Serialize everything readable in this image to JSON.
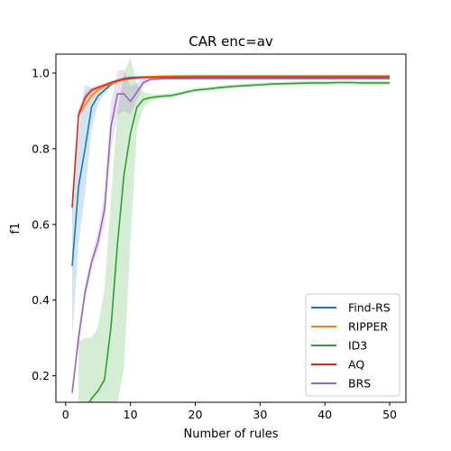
{
  "chart_data": {
    "type": "line",
    "title": "CAR enc=av",
    "xlabel": "Number of rules",
    "ylabel": "f1",
    "xlim": [
      -1.5,
      52.5
    ],
    "ylim": [
      0.13,
      1.05
    ],
    "xticks": [
      0,
      10,
      20,
      30,
      40,
      50
    ],
    "yticks": [
      0.2,
      0.4,
      0.6,
      0.8,
      1.0
    ],
    "grid": false,
    "legend_position": "lower-right",
    "series": [
      {
        "name": "Find-RS",
        "color": "#1f77b4",
        "x": [
          1,
          2,
          3,
          4,
          5,
          6,
          7,
          8,
          9,
          10,
          12,
          15,
          20,
          30,
          40,
          50
        ],
        "y": [
          0.49,
          0.7,
          0.8,
          0.91,
          0.94,
          0.955,
          0.97,
          0.98,
          0.985,
          0.988,
          0.99,
          0.99,
          0.99,
          0.99,
          0.99,
          0.99
        ],
        "band_lower": [
          0.3,
          0.55,
          0.68,
          0.85,
          0.92,
          0.945,
          0.962,
          0.975,
          0.98,
          0.985,
          0.988,
          0.988,
          0.988,
          0.988,
          0.988,
          0.988
        ],
        "band_upper": [
          0.68,
          0.85,
          0.97,
          0.96,
          0.96,
          0.965,
          0.978,
          0.985,
          0.99,
          0.992,
          0.992,
          0.992,
          0.992,
          0.992,
          0.992,
          0.992
        ]
      },
      {
        "name": "RIPPER",
        "color": "#ff7f0e",
        "x": [
          2,
          3,
          4,
          5,
          6,
          7,
          8,
          9,
          10,
          12,
          15,
          20,
          30,
          40,
          50
        ],
        "y": [
          0.89,
          0.915,
          0.94,
          0.955,
          0.965,
          0.972,
          0.978,
          0.982,
          0.985,
          0.99,
          0.992,
          0.993,
          0.993,
          0.993,
          0.993
        ],
        "band_lower": [
          0.88,
          0.905,
          0.93,
          0.948,
          0.96,
          0.968,
          0.975,
          0.98,
          0.983,
          0.988,
          0.991,
          0.992,
          0.992,
          0.992,
          0.992
        ],
        "band_upper": [
          0.9,
          0.925,
          0.95,
          0.962,
          0.97,
          0.976,
          0.981,
          0.984,
          0.987,
          0.992,
          0.993,
          0.994,
          0.994,
          0.994,
          0.994
        ]
      },
      {
        "name": "ID3",
        "color": "#2ca02c",
        "x": [
          2,
          3,
          4,
          5,
          6,
          7,
          8,
          9,
          10,
          11,
          12,
          13,
          14,
          15,
          16,
          17,
          18,
          19,
          20,
          22,
          24,
          26,
          28,
          30,
          32,
          34,
          36,
          38,
          40,
          42,
          44,
          46,
          48,
          50
        ],
        "y": [
          0.1,
          0.11,
          0.14,
          0.16,
          0.19,
          0.33,
          0.55,
          0.73,
          0.84,
          0.91,
          0.93,
          0.935,
          0.937,
          0.939,
          0.94,
          0.943,
          0.947,
          0.951,
          0.955,
          0.958,
          0.962,
          0.965,
          0.967,
          0.969,
          0.971,
          0.972,
          0.973,
          0.974,
          0.974,
          0.975,
          0.975,
          0.974,
          0.974,
          0.974
        ],
        "band_lower": [
          0.05,
          0.06,
          0.07,
          0.08,
          0.1,
          0.12,
          0.13,
          0.22,
          0.55,
          0.85,
          0.91,
          0.925,
          0.93,
          0.933,
          0.935,
          0.938,
          0.942,
          0.946,
          0.95,
          0.953,
          0.957,
          0.96,
          0.962,
          0.964,
          0.966,
          0.967,
          0.968,
          0.969,
          0.969,
          0.97,
          0.97,
          0.969,
          0.969,
          0.969
        ],
        "band_upper": [
          0.29,
          0.3,
          0.3,
          0.33,
          0.43,
          0.67,
          0.9,
          1.0,
          1.04,
          0.97,
          0.95,
          0.945,
          0.944,
          0.945,
          0.946,
          0.948,
          0.952,
          0.956,
          0.96,
          0.963,
          0.967,
          0.97,
          0.972,
          0.974,
          0.976,
          0.977,
          0.978,
          0.979,
          0.979,
          0.98,
          0.98,
          0.979,
          0.979,
          0.979
        ]
      },
      {
        "name": "AQ",
        "color": "#d62728",
        "x": [
          1,
          2,
          3,
          4,
          5,
          6,
          7,
          8,
          9,
          10,
          12,
          15,
          20,
          30,
          40,
          50
        ],
        "y": [
          0.645,
          0.89,
          0.935,
          0.955,
          0.962,
          0.968,
          0.975,
          0.98,
          0.984,
          0.986,
          0.988,
          0.989,
          0.989,
          0.989,
          0.989,
          0.989
        ],
        "band_lower": [
          0.62,
          0.875,
          0.925,
          0.948,
          0.956,
          0.963,
          0.97,
          0.976,
          0.98,
          0.983,
          0.986,
          0.987,
          0.987,
          0.987,
          0.987,
          0.987
        ],
        "band_upper": [
          0.67,
          0.905,
          0.945,
          0.962,
          0.968,
          0.973,
          0.98,
          0.984,
          0.987,
          0.989,
          0.99,
          0.991,
          0.991,
          0.991,
          0.991,
          0.991
        ]
      },
      {
        "name": "BRS",
        "color": "#9467bd",
        "x": [
          1,
          2,
          3,
          4,
          5,
          6,
          7,
          8,
          9,
          10,
          11,
          12,
          13,
          15,
          20,
          30,
          40,
          50
        ],
        "y": [
          0.155,
          0.3,
          0.42,
          0.5,
          0.555,
          0.64,
          0.86,
          0.945,
          0.945,
          0.925,
          0.95,
          0.975,
          0.983,
          0.985,
          0.985,
          0.985,
          0.985,
          0.985
        ],
        "band_lower": [
          0.14,
          0.28,
          0.4,
          0.48,
          0.53,
          0.6,
          0.8,
          0.89,
          0.9,
          0.89,
          0.93,
          0.965,
          0.978,
          0.983,
          0.983,
          0.983,
          0.983,
          0.983
        ],
        "band_upper": [
          0.17,
          0.32,
          0.44,
          0.52,
          0.58,
          0.68,
          0.92,
          1.005,
          1.01,
          0.965,
          0.975,
          0.985,
          0.988,
          0.988,
          0.988,
          0.988,
          0.988,
          0.988
        ]
      }
    ]
  }
}
